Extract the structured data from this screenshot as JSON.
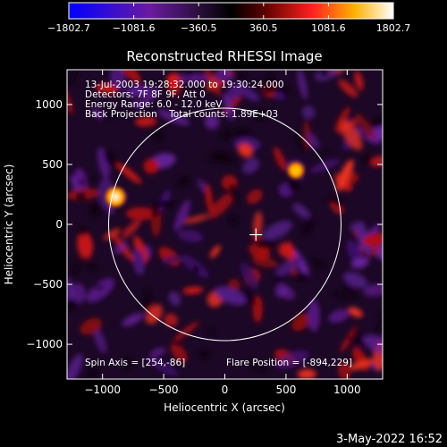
{
  "chart_data": {
    "type": "heatmap",
    "title": "Reconstructed RHESSI Image",
    "xlabel": "Heliocentric X (arcsec)",
    "ylabel": "Heliocentric Y (arcsec)",
    "xlim": [
      -1290,
      1290
    ],
    "ylim": [
      -1290,
      1290
    ],
    "xticks": [
      -1000,
      -500,
      0,
      500,
      1000
    ],
    "yticks": [
      -1000,
      -500,
      0,
      500,
      1000
    ],
    "xtick_labels": [
      "−1000",
      "−500",
      "0",
      "500",
      "1000"
    ],
    "ytick_labels": [
      "−1000",
      "−500",
      "0",
      "500",
      "1000"
    ],
    "colorbar": {
      "min": -1802.7,
      "max": 1802.7,
      "ticks": [
        -1802.7,
        -1081.6,
        -360.5,
        360.5,
        1081.6,
        1802.7
      ],
      "tick_labels": [
        "−1802.7",
        "−1081.6",
        "−360.5",
        "360.5",
        "1081.6",
        "1802.7"
      ],
      "colormap": [
        "#0000ff",
        "#6a1aa0",
        "#2a0f3c",
        "#000000",
        "#5a0000",
        "#ff2020",
        "#ffb000",
        "#ffffff"
      ]
    },
    "annotations": [
      "13-Jul-2003 19:28:32.000 to 19:30:24.000",
      "Detectors: 7F 8F 9F, Att 0",
      "Energy Range: 6.0 - 12.0 keV",
      "Back Projection    Total counts: 1.89E+03"
    ],
    "spin_axis_label": "Spin Axis = [254,-86]",
    "flare_position_label": "Flare Position = [-894,229]",
    "spin_axis": [
      254,
      -86
    ],
    "flare_position": [
      -894,
      229
    ],
    "solar_disk_radius": 950,
    "bright_sources": [
      {
        "x": -894,
        "y": 229,
        "intensity": 1802.7
      },
      {
        "x": 580,
        "y": 450,
        "intensity": 1100
      }
    ]
  },
  "footer": {
    "date": "3-May-2022 16:52"
  },
  "colors": {
    "background": "#000000",
    "text": "#ffffff",
    "disk_outline": "#ffffff"
  }
}
